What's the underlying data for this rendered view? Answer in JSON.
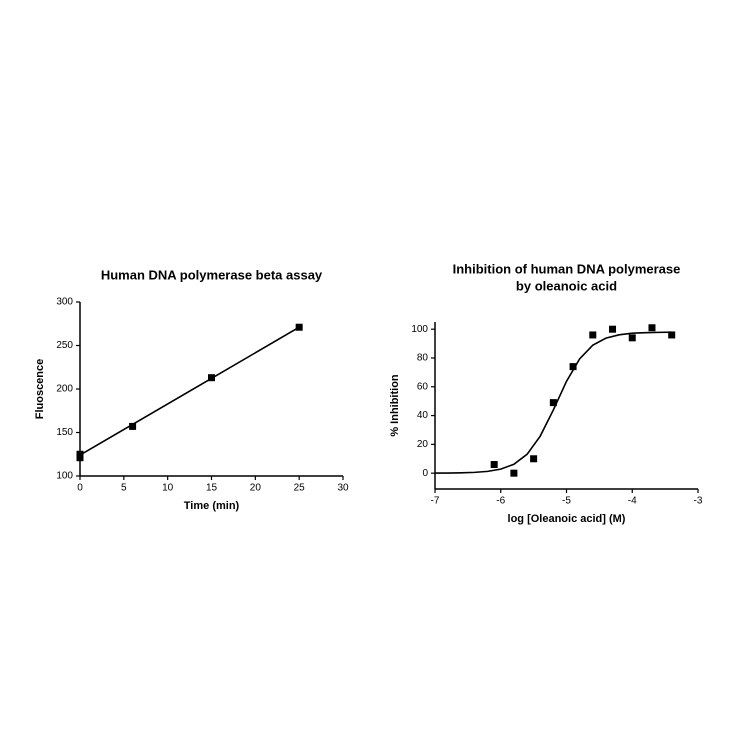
{
  "chart_data": [
    {
      "type": "scatter",
      "title": "Human DNA polymerase beta assay",
      "x_label": "Time (min)",
      "y_label": "Fluoscence",
      "xlim": [
        0,
        30
      ],
      "xticks": [
        0,
        5,
        10,
        15,
        20,
        25,
        30
      ],
      "ylim": [
        100,
        300
      ],
      "yticks": [
        100,
        150,
        200,
        250,
        300
      ],
      "color": "#000000",
      "x": [
        0,
        0,
        6,
        15,
        25
      ],
      "values": [
        125,
        121,
        157,
        213,
        271
      ],
      "fit": {
        "x": [
          0,
          25
        ],
        "values": [
          124,
          271
        ]
      }
    },
    {
      "type": "scatter",
      "title": [
        "Inhibition of human DNA polymerase",
        "by oleanoic acid"
      ],
      "x_label": "log [Oleanoic acid] (M)",
      "y_label": "% Inhibition",
      "xlim": [
        -7,
        -3
      ],
      "xticks": [
        -7,
        -6,
        -5,
        -4,
        -3
      ],
      "ylim": [
        -11,
        105
      ],
      "yticks": [
        0,
        20,
        40,
        60,
        80,
        100
      ],
      "color": "#000000",
      "x": [
        -6.1,
        -5.8,
        -5.5,
        -5.2,
        -4.9,
        -4.6,
        -4.3,
        -4.0,
        -3.7,
        -3.4
      ],
      "values": [
        6,
        0,
        10,
        49,
        74,
        96,
        100,
        94,
        101,
        96
      ],
      "fit": {
        "x": [
          -7,
          -6.8,
          -6.6,
          -6.4,
          -6.2,
          -6.0,
          -5.8,
          -5.6,
          -5.4,
          -5.2,
          -5.0,
          -4.8,
          -4.6,
          -4.4,
          -4.2,
          -4.0,
          -3.8,
          -3.6,
          -3.4
        ],
        "values": [
          0.05,
          0.1,
          0.24,
          0.55,
          1.25,
          2.81,
          6.2,
          13.1,
          25.7,
          43.9,
          63.8,
          79.4,
          88.9,
          93.8,
          96.1,
          97.2,
          97.6,
          97.8,
          97.9
        ]
      }
    }
  ]
}
